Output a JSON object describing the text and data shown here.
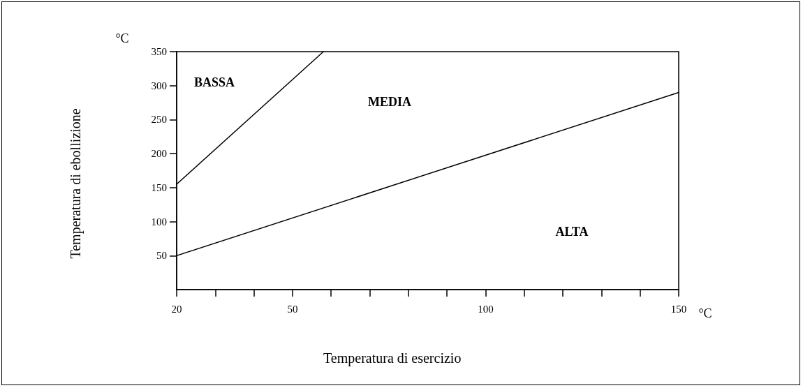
{
  "chart_data": {
    "type": "line",
    "xlabel": "Temperatura di esercizio",
    "ylabel": "Temperatura di ebollizione",
    "series": [
      {
        "color": "#000000",
        "x": [
          20,
          58
        ],
        "values": [
          155,
          350
        ]
      },
      {
        "color": "#000000",
        "x": [
          20,
          150
        ],
        "values": [
          50,
          290
        ]
      }
    ],
    "xlim": [
      20,
      150
    ],
    "xticks": [
      20,
      {
        "value": 30,
        "label": null
      },
      {
        "value": 40,
        "label": null
      },
      50,
      {
        "value": 60,
        "label": null
      },
      {
        "value": 70,
        "label": null
      },
      {
        "value": 80,
        "label": null
      },
      {
        "value": 90,
        "label": null
      },
      100,
      {
        "value": 110,
        "label": null
      },
      {
        "value": 120,
        "label": null
      },
      {
        "value": 130,
        "label": null
      },
      {
        "value": 140,
        "label": null
      },
      150
    ],
    "ylim": [
      0,
      350
    ],
    "yticks": [
      50,
      100,
      150,
      200,
      250,
      300,
      350
    ],
    "grid": false,
    "marker": "none",
    "line_style": "solid",
    "annotations": [
      "°C",
      "°C",
      "BASSA",
      "MEDIA",
      "ALTA"
    ]
  }
}
